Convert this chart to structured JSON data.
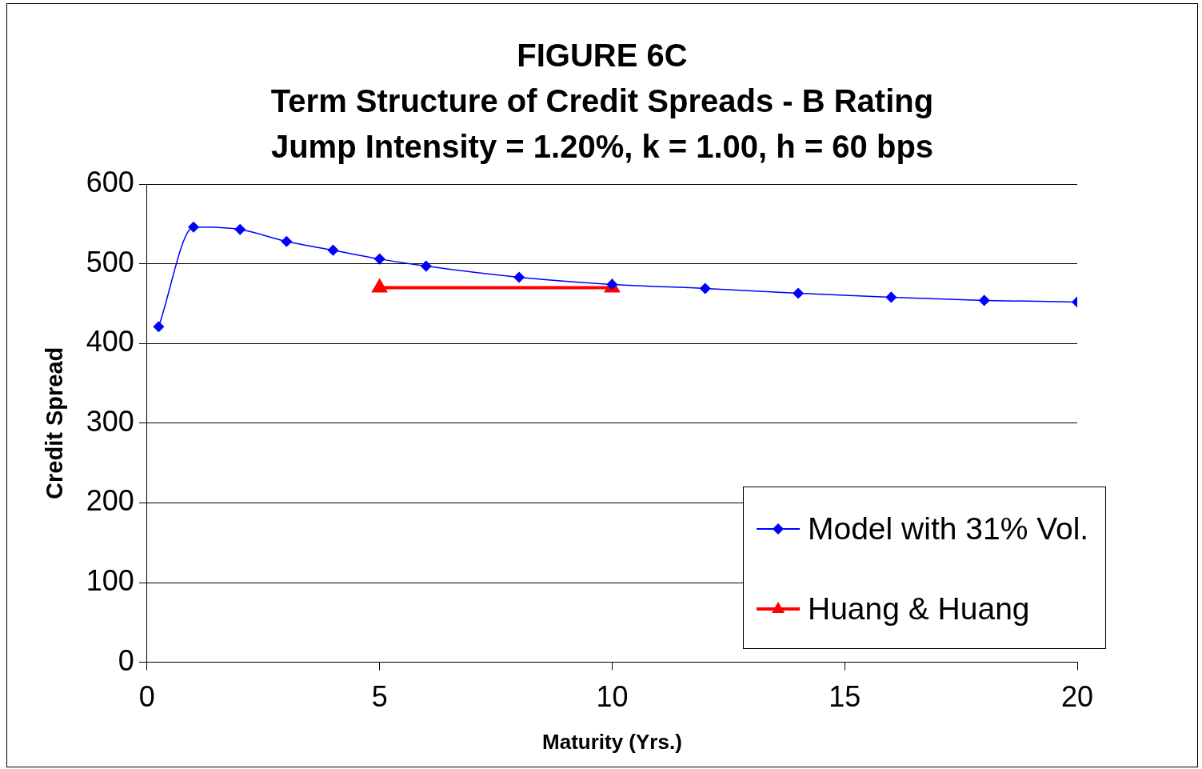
{
  "chart_data": {
    "type": "line",
    "title": "FIGURE 6C\nTerm Structure of Credit Spreads - B Rating\nJump Intensity = 1.20%, k = 1.00, h = 60 bps",
    "xlabel": "Maturity (Yrs.)",
    "ylabel": "Credit Spread",
    "xlim": [
      0,
      20
    ],
    "xticks": [
      0,
      5,
      10,
      15,
      20
    ],
    "ylim": [
      0,
      600
    ],
    "yticks": [
      0,
      100,
      200,
      300,
      400,
      500,
      600
    ],
    "grid": "y",
    "legend": "bottom right",
    "series": [
      {
        "name": "Model with 31% Vol.",
        "color": "#0000ff",
        "marker": "diamond",
        "x": [
          0.25,
          1,
          2,
          3,
          4,
          5,
          6,
          8,
          10,
          12,
          14,
          16,
          18,
          20
        ],
        "values": [
          421,
          546,
          543,
          528,
          517,
          506,
          497,
          483,
          474,
          469,
          463,
          458,
          454,
          452
        ]
      },
      {
        "name": "Huang & Huang",
        "color": "#ff0000",
        "marker": "triangle",
        "x": [
          5,
          10
        ],
        "values": [
          470,
          470
        ]
      }
    ]
  }
}
